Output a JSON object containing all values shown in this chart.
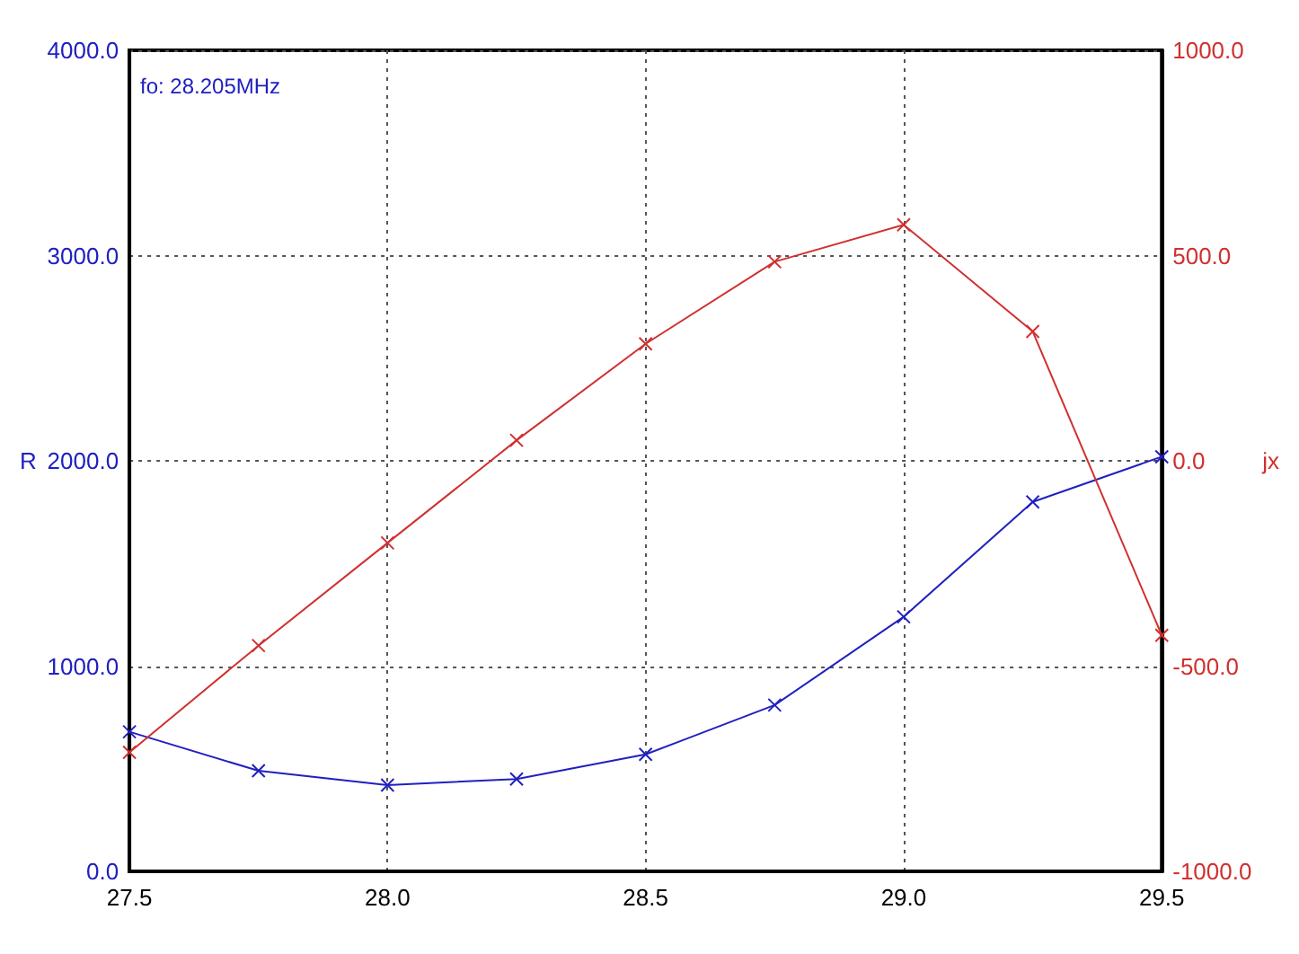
{
  "chart_data": {
    "type": "line",
    "ylabel": "R",
    "y2label": "jx",
    "annotations": [
      "fo: 28.205MHz"
    ],
    "x": [
      27.5,
      27.75,
      28.0,
      28.25,
      28.5,
      28.75,
      29.0,
      29.25,
      29.5
    ],
    "series": [
      {
        "color": "#2020c0",
        "values": [
          680,
          490,
          420,
          450,
          570,
          810,
          1240,
          1800,
          2020
        ]
      },
      {
        "color": "#d03030",
        "axis": "y2",
        "values": [
          -710,
          -450,
          -200,
          50,
          285,
          485,
          575,
          315,
          -425
        ]
      }
    ],
    "xlim": [
      27.5,
      29.5
    ],
    "xticks": [
      {
        "value": 27.5,
        "label": "27.5"
      },
      {
        "value": 28.0,
        "label": "28.0"
      },
      {
        "value": 28.5,
        "label": "28.5"
      },
      {
        "value": 29.0,
        "label": "29.0"
      },
      {
        "value": 29.5,
        "label": "29.5"
      }
    ],
    "ylim": [
      0,
      4000
    ],
    "yticks": [
      {
        "value": 0,
        "label": "0.0"
      },
      {
        "value": 1000,
        "label": "1000.0"
      },
      {
        "value": 2000,
        "label": "2000.0"
      },
      {
        "value": 3000,
        "label": "3000.0"
      },
      {
        "value": 4000,
        "label": "4000.0"
      }
    ],
    "y2lim": [
      -1000,
      1000
    ],
    "y2ticks": [
      {
        "value": -1000,
        "label": "-1000.0"
      },
      {
        "value": -500,
        "label": "-500.0"
      },
      {
        "value": 0,
        "label": "0.0"
      },
      {
        "value": 500,
        "label": "500.0"
      },
      {
        "value": 1000,
        "label": "1000.0"
      }
    ],
    "grid": true,
    "marker": "cross",
    "line_style": "solid"
  }
}
